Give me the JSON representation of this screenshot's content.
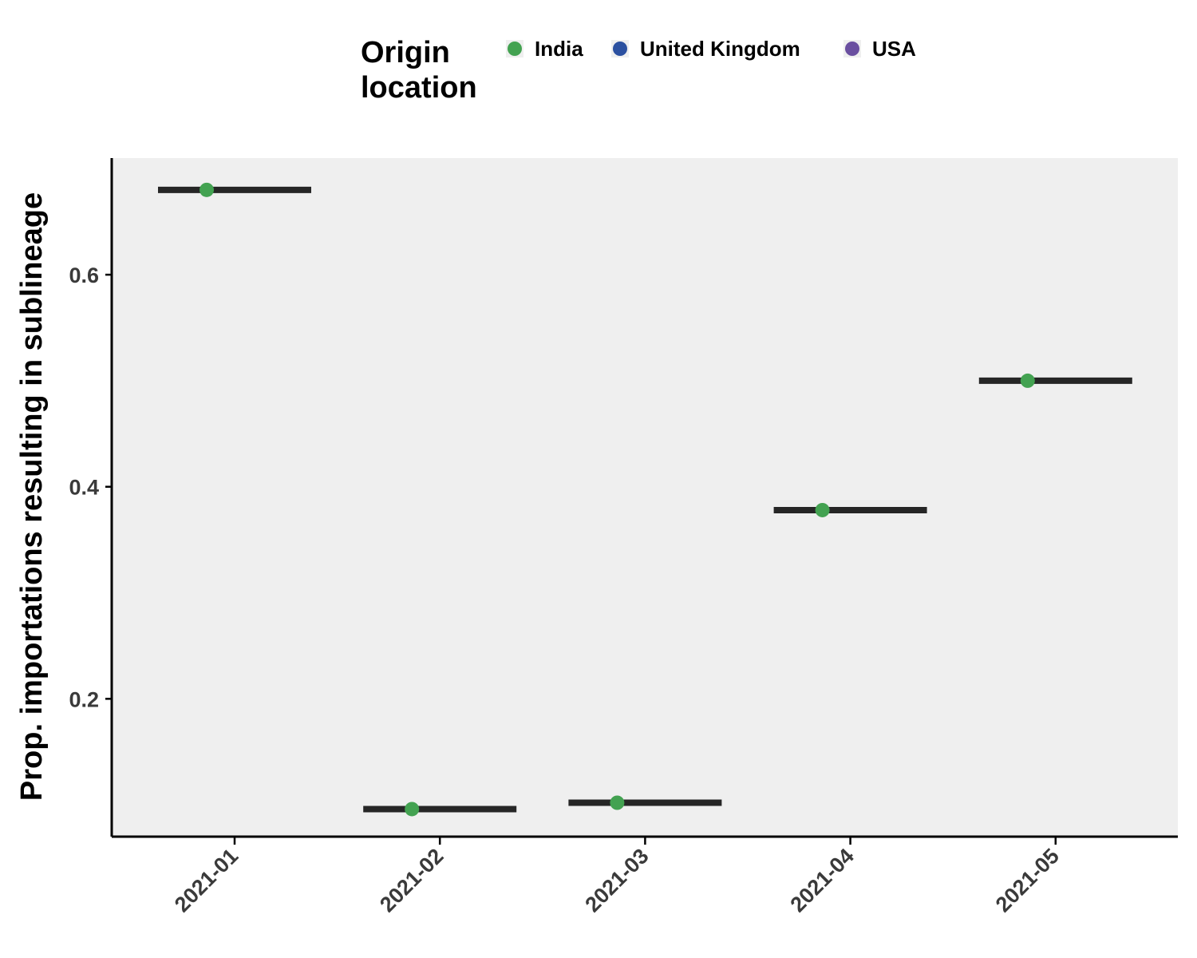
{
  "legend": {
    "title": "Origin\nlocation",
    "entries": [
      {
        "label": "India",
        "color": "#43a251"
      },
      {
        "label": "United Kingdom",
        "color": "#2b50a0"
      },
      {
        "label": "USA",
        "color": "#6a4fa0"
      }
    ]
  },
  "colors": {
    "panel_background": "#efefef",
    "median_bar": "#262626",
    "axis": "#000000"
  },
  "chart_data": {
    "type": "scatter",
    "title": "",
    "xlabel": "",
    "ylabel": "Prop. importations resulting in sublineage",
    "categories": [
      "2021-01",
      "2021-02",
      "2021-03",
      "2021-04",
      "2021-05"
    ],
    "ylim": [
      0.07,
      0.71
    ],
    "yticks": [
      0.2,
      0.4,
      0.6
    ],
    "ytick_labels": [
      "0.2",
      "0.4",
      "0.6"
    ],
    "grid": false,
    "legend_position": "top",
    "series": [
      {
        "name": "India",
        "color": "#43a251",
        "values": [
          0.68,
          0.096,
          0.102,
          0.378,
          0.5
        ]
      }
    ],
    "median_bars": [
      0.68,
      0.096,
      0.102,
      0.378,
      0.5
    ]
  }
}
